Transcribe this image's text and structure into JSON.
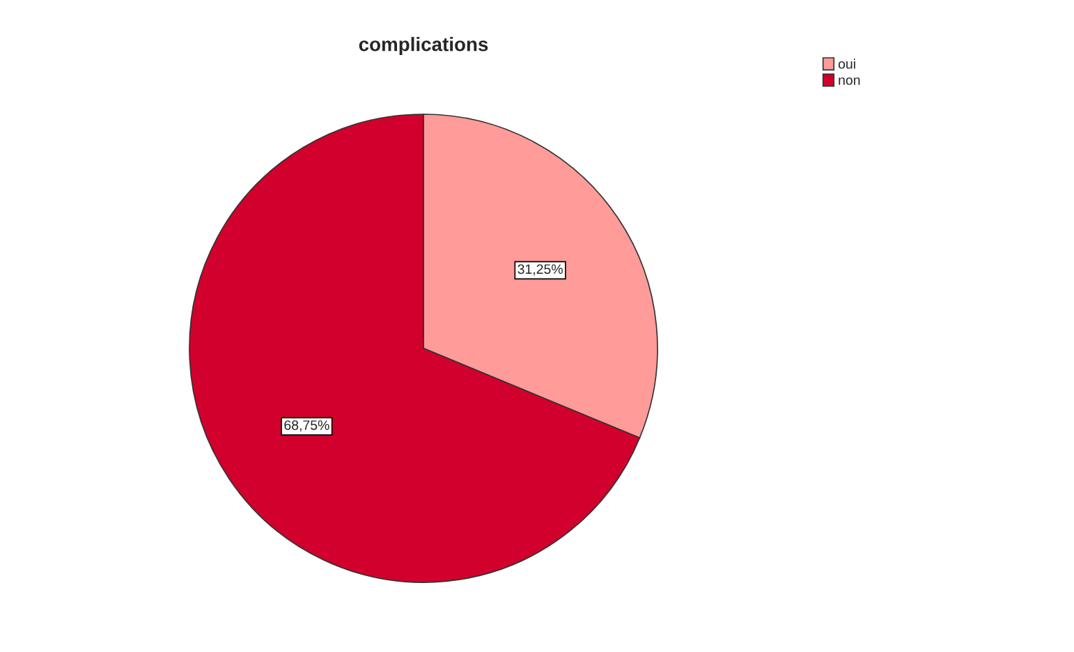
{
  "chart_data": {
    "type": "pie",
    "title": "complications",
    "categories": [
      "oui",
      "non"
    ],
    "values": [
      31.25,
      68.75
    ],
    "colors": [
      "#ff9b99",
      "#d2002c"
    ],
    "value_labels": [
      "31,25%",
      "68,75%"
    ],
    "legend": "top right"
  }
}
